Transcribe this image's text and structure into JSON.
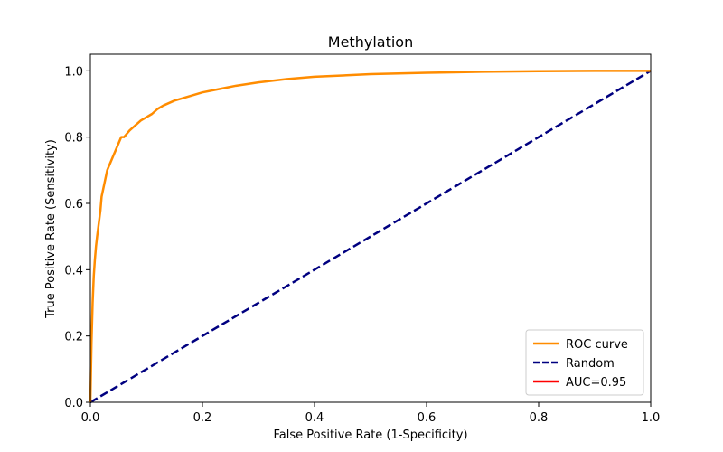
{
  "chart_data": {
    "type": "line",
    "title": "Methylation",
    "xlabel": "False Positive Rate (1-Specificity)",
    "ylabel": "True Positive Rate (Sensitivity)",
    "xlim": [
      0.0,
      1.0
    ],
    "ylim": [
      0.0,
      1.05
    ],
    "xticks": [
      "0.0",
      "0.2",
      "0.4",
      "0.6",
      "0.8",
      "1.0"
    ],
    "yticks": [
      "0.0",
      "0.2",
      "0.4",
      "0.6",
      "0.8",
      "1.0"
    ],
    "grid": false,
    "legend_position": "bottom-right",
    "series": [
      {
        "name": "ROC curve",
        "color": "#ff8c00",
        "style": "solid",
        "x": [
          0.0,
          0.002,
          0.004,
          0.006,
          0.008,
          0.01,
          0.012,
          0.015,
          0.018,
          0.02,
          0.025,
          0.03,
          0.035,
          0.04,
          0.045,
          0.05,
          0.055,
          0.06,
          0.065,
          0.07,
          0.08,
          0.09,
          0.1,
          0.11,
          0.12,
          0.13,
          0.15,
          0.17,
          0.2,
          0.23,
          0.26,
          0.3,
          0.35,
          0.4,
          0.5,
          0.6,
          0.7,
          0.8,
          0.9,
          1.0
        ],
        "y": [
          0.0,
          0.18,
          0.3,
          0.38,
          0.43,
          0.47,
          0.5,
          0.54,
          0.58,
          0.62,
          0.66,
          0.7,
          0.72,
          0.74,
          0.76,
          0.78,
          0.8,
          0.8,
          0.81,
          0.82,
          0.835,
          0.85,
          0.86,
          0.87,
          0.885,
          0.895,
          0.91,
          0.92,
          0.935,
          0.945,
          0.955,
          0.965,
          0.975,
          0.982,
          0.99,
          0.994,
          0.997,
          0.999,
          1.0,
          1.0
        ]
      },
      {
        "name": "Random",
        "color": "#000080",
        "style": "dashed",
        "x": [
          0.0,
          1.0
        ],
        "y": [
          0.0,
          1.0
        ]
      }
    ],
    "legend": [
      {
        "label": "ROC curve",
        "color": "#ff8c00",
        "style": "solid"
      },
      {
        "label": "Random",
        "color": "#000080",
        "style": "dashed"
      },
      {
        "label": "AUC=0.95",
        "color": "#ff0000",
        "style": "solid"
      }
    ]
  }
}
